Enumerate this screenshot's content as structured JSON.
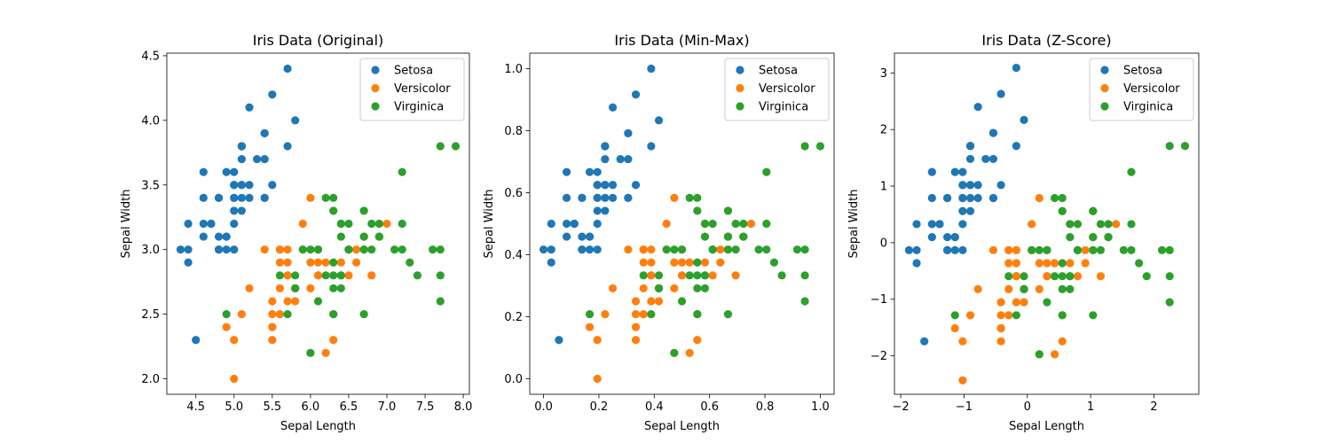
{
  "chart_data": [
    {
      "type": "scatter",
      "title": "Iris Data (Original)",
      "xlabel": "Sepal Length",
      "ylabel": "Sepal Width",
      "xlim": [
        4.12,
        8.08
      ],
      "ylim": [
        1.88,
        4.52
      ],
      "xticks": [
        4.5,
        5.0,
        5.5,
        6.0,
        6.5,
        7.0,
        7.5,
        8.0
      ],
      "xtick_labels": [
        "4.5",
        "5.0",
        "5.5",
        "6.0",
        "6.5",
        "7.0",
        "7.5",
        "8.0"
      ],
      "yticks": [
        2.0,
        2.5,
        3.0,
        3.5,
        4.0,
        4.5
      ],
      "ytick_labels": [
        "2.0",
        "2.5",
        "3.0",
        "3.5",
        "4.0",
        "4.5"
      ],
      "legend_position": "top-right",
      "series": [
        {
          "name": "Setosa",
          "color": "#1f77b4",
          "points": [
            [
              5.1,
              3.5
            ],
            [
              4.9,
              3.0
            ],
            [
              4.7,
              3.2
            ],
            [
              4.6,
              3.1
            ],
            [
              5.0,
              3.6
            ],
            [
              5.4,
              3.9
            ],
            [
              4.6,
              3.4
            ],
            [
              5.0,
              3.4
            ],
            [
              4.4,
              2.9
            ],
            [
              4.9,
              3.1
            ],
            [
              5.4,
              3.7
            ],
            [
              4.8,
              3.4
            ],
            [
              4.8,
              3.0
            ],
            [
              4.3,
              3.0
            ],
            [
              5.8,
              4.0
            ],
            [
              5.7,
              4.4
            ],
            [
              5.4,
              3.9
            ],
            [
              5.1,
              3.5
            ],
            [
              5.7,
              3.8
            ],
            [
              5.1,
              3.8
            ],
            [
              5.4,
              3.4
            ],
            [
              5.1,
              3.7
            ],
            [
              4.6,
              3.6
            ],
            [
              5.1,
              3.3
            ],
            [
              4.8,
              3.4
            ],
            [
              5.0,
              3.0
            ],
            [
              5.0,
              3.4
            ],
            [
              5.2,
              3.5
            ],
            [
              5.2,
              3.4
            ],
            [
              4.7,
              3.2
            ],
            [
              4.8,
              3.1
            ],
            [
              5.4,
              3.4
            ],
            [
              5.2,
              4.1
            ],
            [
              5.5,
              4.2
            ],
            [
              4.9,
              3.1
            ],
            [
              5.0,
              3.2
            ],
            [
              5.5,
              3.5
            ],
            [
              4.9,
              3.6
            ],
            [
              4.4,
              3.0
            ],
            [
              5.1,
              3.4
            ],
            [
              5.0,
              3.5
            ],
            [
              4.5,
              2.3
            ],
            [
              4.4,
              3.2
            ],
            [
              5.0,
              3.5
            ],
            [
              5.1,
              3.8
            ],
            [
              4.8,
              3.0
            ],
            [
              5.1,
              3.8
            ],
            [
              4.6,
              3.2
            ],
            [
              5.3,
              3.7
            ],
            [
              5.0,
              3.3
            ]
          ]
        },
        {
          "name": "Versicolor",
          "color": "#ff7f0e",
          "points": [
            [
              7.0,
              3.2
            ],
            [
              6.4,
              3.2
            ],
            [
              6.9,
              3.1
            ],
            [
              5.5,
              2.3
            ],
            [
              6.5,
              2.8
            ],
            [
              5.7,
              2.8
            ],
            [
              6.3,
              3.3
            ],
            [
              4.9,
              2.4
            ],
            [
              6.6,
              2.9
            ],
            [
              5.2,
              2.7
            ],
            [
              5.0,
              2.0
            ],
            [
              5.9,
              3.0
            ],
            [
              6.0,
              2.2
            ],
            [
              6.1,
              2.9
            ],
            [
              5.6,
              2.9
            ],
            [
              6.7,
              3.1
            ],
            [
              5.6,
              3.0
            ],
            [
              5.8,
              2.7
            ],
            [
              6.2,
              2.2
            ],
            [
              5.6,
              2.5
            ],
            [
              5.9,
              3.2
            ],
            [
              6.1,
              2.8
            ],
            [
              6.3,
              2.5
            ],
            [
              6.1,
              2.8
            ],
            [
              6.4,
              2.9
            ],
            [
              6.6,
              3.0
            ],
            [
              6.8,
              2.8
            ],
            [
              6.7,
              3.0
            ],
            [
              6.0,
              2.9
            ],
            [
              5.7,
              2.6
            ],
            [
              5.5,
              2.4
            ],
            [
              5.5,
              2.4
            ],
            [
              5.8,
              2.7
            ],
            [
              6.0,
              2.7
            ],
            [
              5.4,
              3.0
            ],
            [
              6.0,
              3.4
            ],
            [
              6.7,
              3.1
            ],
            [
              6.3,
              2.3
            ],
            [
              5.6,
              3.0
            ],
            [
              5.5,
              2.5
            ],
            [
              5.5,
              2.6
            ],
            [
              6.1,
              3.0
            ],
            [
              5.8,
              2.6
            ],
            [
              5.0,
              2.3
            ],
            [
              5.6,
              2.7
            ],
            [
              5.7,
              3.0
            ],
            [
              5.7,
              2.9
            ],
            [
              6.2,
              2.9
            ],
            [
              5.1,
              2.5
            ],
            [
              5.7,
              2.8
            ]
          ]
        },
        {
          "name": "Virginica",
          "color": "#2ca02c",
          "points": [
            [
              6.3,
              3.3
            ],
            [
              5.8,
              2.7
            ],
            [
              7.1,
              3.0
            ],
            [
              6.3,
              2.9
            ],
            [
              6.5,
              3.0
            ],
            [
              7.6,
              3.0
            ],
            [
              4.9,
              2.5
            ],
            [
              7.3,
              2.9
            ],
            [
              6.7,
              2.5
            ],
            [
              7.2,
              3.6
            ],
            [
              6.5,
              3.2
            ],
            [
              6.4,
              2.7
            ],
            [
              6.8,
              3.0
            ],
            [
              5.7,
              2.5
            ],
            [
              5.8,
              2.8
            ],
            [
              6.4,
              3.2
            ],
            [
              6.5,
              3.0
            ],
            [
              7.7,
              3.8
            ],
            [
              7.7,
              2.6
            ],
            [
              6.0,
              2.2
            ],
            [
              6.9,
              3.2
            ],
            [
              5.6,
              2.8
            ],
            [
              7.7,
              2.8
            ],
            [
              6.3,
              2.7
            ],
            [
              6.7,
              3.3
            ],
            [
              7.2,
              3.2
            ],
            [
              6.2,
              2.8
            ],
            [
              6.1,
              3.0
            ],
            [
              6.4,
              2.8
            ],
            [
              7.2,
              3.0
            ],
            [
              7.4,
              2.8
            ],
            [
              7.9,
              3.8
            ],
            [
              6.4,
              2.8
            ],
            [
              6.3,
              2.8
            ],
            [
              6.1,
              2.6
            ],
            [
              7.7,
              3.0
            ],
            [
              6.3,
              3.4
            ],
            [
              6.4,
              3.1
            ],
            [
              6.0,
              3.0
            ],
            [
              6.9,
              3.1
            ],
            [
              6.7,
              3.1
            ],
            [
              6.9,
              3.1
            ],
            [
              5.8,
              2.7
            ],
            [
              6.8,
              3.2
            ],
            [
              6.7,
              3.3
            ],
            [
              6.7,
              3.0
            ],
            [
              6.3,
              2.5
            ],
            [
              6.5,
              3.0
            ],
            [
              6.2,
              3.4
            ],
            [
              5.9,
              3.0
            ]
          ]
        }
      ]
    },
    {
      "type": "scatter",
      "title": "Iris Data (Min-Max)",
      "xlabel": "Sepal Length",
      "ylabel": "Sepal Width",
      "xlim": [
        -0.05,
        1.05
      ],
      "ylim": [
        -0.05,
        1.05
      ],
      "xticks": [
        0.0,
        0.2,
        0.4,
        0.6,
        0.8,
        1.0
      ],
      "xtick_labels": [
        "0.0",
        "0.2",
        "0.4",
        "0.6",
        "0.8",
        "1.0"
      ],
      "yticks": [
        0.0,
        0.2,
        0.4,
        0.6,
        0.8,
        1.0
      ],
      "ytick_labels": [
        "0.0",
        "0.2",
        "0.4",
        "0.6",
        "0.8",
        "1.0"
      ],
      "legend_position": "top-right",
      "derive_from_first": "minmax"
    },
    {
      "type": "scatter",
      "title": "Iris Data (Z-Score)",
      "xlabel": "Sepal Length",
      "ylabel": "Sepal Width",
      "xlim": [
        -2.1,
        2.71
      ],
      "ylim": [
        -2.68,
        3.35
      ],
      "xticks": [
        -2,
        -1,
        0,
        1,
        2
      ],
      "xtick_labels": [
        "−2",
        "−1",
        "0",
        "1",
        "2"
      ],
      "yticks": [
        -2,
        -1,
        0,
        1,
        2,
        3
      ],
      "ytick_labels": [
        "−2",
        "−1",
        "0",
        "1",
        "2",
        "3"
      ],
      "legend_position": "top-right",
      "derive_from_first": "zscore"
    }
  ]
}
